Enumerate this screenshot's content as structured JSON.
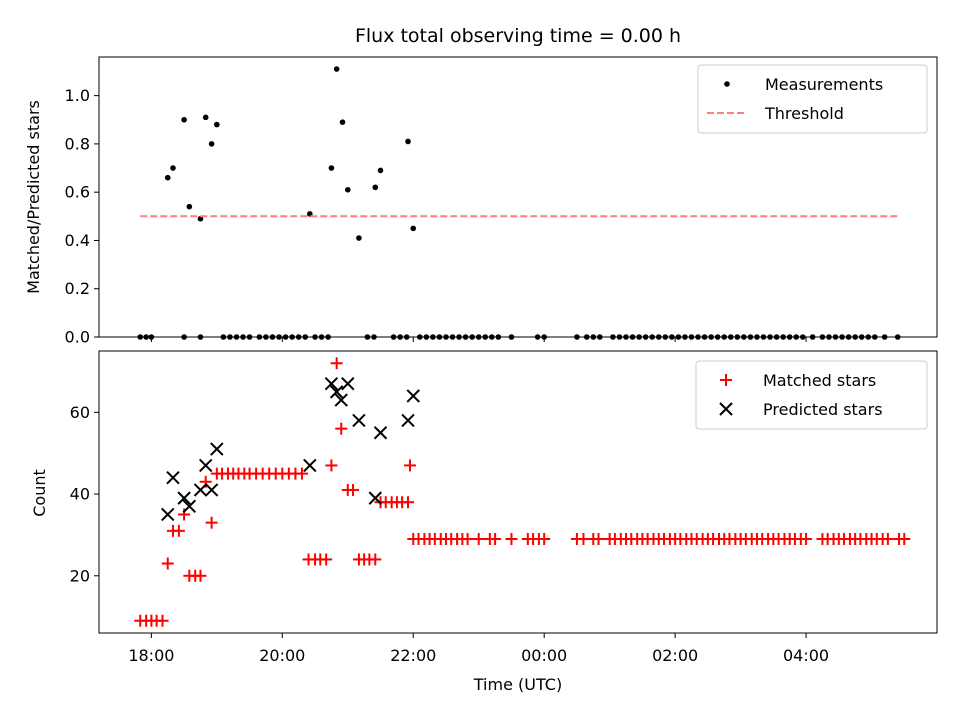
{
  "chart_data": [
    {
      "type": "scatter",
      "title": "Flux total observing time = 0.00 h",
      "xlabel": "",
      "ylabel": "Matched/Predicted stars",
      "xlim": [
        17.2,
        30.0
      ],
      "ylim": [
        0.0,
        1.16
      ],
      "yticks": [
        0.0,
        0.2,
        0.4,
        0.6,
        0.8,
        1.0
      ],
      "ytick_labels": [
        "0.0",
        "0.2",
        "0.4",
        "0.6",
        "0.8",
        "1.0"
      ],
      "legend_position": "top-right",
      "legend": [
        "Measurements",
        "Threshold"
      ],
      "series": [
        {
          "name": "Measurements",
          "color": "#000000",
          "marker": "dot",
          "points": [
            [
              18.25,
              0.66
            ],
            [
              18.33,
              0.7
            ],
            [
              18.5,
              0.9
            ],
            [
              18.58,
              0.54
            ],
            [
              18.75,
              0.49
            ],
            [
              18.83,
              0.91
            ],
            [
              18.92,
              0.8
            ],
            [
              19.0,
              0.88
            ],
            [
              20.42,
              0.51
            ],
            [
              20.75,
              0.7
            ],
            [
              20.83,
              1.11
            ],
            [
              20.92,
              0.89
            ],
            [
              21.0,
              0.61
            ],
            [
              21.17,
              0.41
            ],
            [
              21.42,
              0.62
            ],
            [
              21.5,
              0.69
            ],
            [
              21.92,
              0.81
            ],
            [
              22.0,
              0.45
            ],
            [
              17.83,
              0
            ],
            [
              17.92,
              0
            ],
            [
              18.0,
              0
            ],
            [
              18.5,
              0
            ],
            [
              18.75,
              0
            ],
            [
              19.1,
              0
            ],
            [
              19.2,
              0
            ],
            [
              19.3,
              0
            ],
            [
              19.4,
              0
            ],
            [
              19.5,
              0
            ],
            [
              19.65,
              0
            ],
            [
              19.75,
              0
            ],
            [
              19.85,
              0
            ],
            [
              19.95,
              0
            ],
            [
              20.05,
              0
            ],
            [
              20.15,
              0
            ],
            [
              20.25,
              0
            ],
            [
              20.35,
              0
            ],
            [
              20.5,
              0
            ],
            [
              20.6,
              0
            ],
            [
              20.7,
              0
            ],
            [
              21.3,
              0
            ],
            [
              21.4,
              0
            ],
            [
              21.7,
              0
            ],
            [
              21.8,
              0
            ],
            [
              21.9,
              0
            ],
            [
              22.1,
              0
            ],
            [
              22.2,
              0
            ],
            [
              22.3,
              0
            ],
            [
              22.4,
              0
            ],
            [
              22.5,
              0
            ],
            [
              22.6,
              0
            ],
            [
              22.7,
              0
            ],
            [
              22.8,
              0
            ],
            [
              22.9,
              0
            ],
            [
              23.0,
              0
            ],
            [
              23.1,
              0
            ],
            [
              23.2,
              0
            ],
            [
              23.3,
              0
            ],
            [
              23.5,
              0
            ],
            [
              23.9,
              0
            ],
            [
              24.0,
              0
            ],
            [
              24.5,
              0
            ],
            [
              24.65,
              0
            ],
            [
              24.75,
              0
            ],
            [
              24.85,
              0
            ],
            [
              25.05,
              0
            ],
            [
              25.15,
              0
            ],
            [
              25.25,
              0
            ],
            [
              25.35,
              0
            ],
            [
              25.45,
              0
            ],
            [
              25.55,
              0
            ],
            [
              25.65,
              0
            ],
            [
              25.75,
              0
            ],
            [
              25.85,
              0
            ],
            [
              25.95,
              0
            ],
            [
              26.05,
              0
            ],
            [
              26.15,
              0
            ],
            [
              26.25,
              0
            ],
            [
              26.35,
              0
            ],
            [
              26.45,
              0
            ],
            [
              26.55,
              0
            ],
            [
              26.65,
              0
            ],
            [
              26.75,
              0
            ],
            [
              26.85,
              0
            ],
            [
              26.95,
              0
            ],
            [
              27.05,
              0
            ],
            [
              27.15,
              0
            ],
            [
              27.25,
              0
            ],
            [
              27.35,
              0
            ],
            [
              27.45,
              0
            ],
            [
              27.55,
              0
            ],
            [
              27.65,
              0
            ],
            [
              27.75,
              0
            ],
            [
              27.85,
              0
            ],
            [
              27.95,
              0
            ],
            [
              28.1,
              0
            ],
            [
              28.25,
              0
            ],
            [
              28.35,
              0
            ],
            [
              28.45,
              0
            ],
            [
              28.55,
              0
            ],
            [
              28.65,
              0
            ],
            [
              28.75,
              0
            ],
            [
              28.85,
              0
            ],
            [
              28.95,
              0
            ],
            [
              29.05,
              0
            ],
            [
              29.2,
              0
            ],
            [
              29.4,
              0
            ]
          ]
        },
        {
          "name": "Threshold",
          "color": "#ff7f7f",
          "style": "dashed",
          "points": [
            [
              17.83,
              0.5
            ],
            [
              29.4,
              0.5
            ]
          ]
        }
      ]
    },
    {
      "type": "scatter",
      "title": "",
      "xlabel": "Time (UTC)",
      "ylabel": "Count",
      "xlim": [
        17.2,
        30.0
      ],
      "ylim": [
        6,
        75
      ],
      "yticks": [
        20,
        40,
        60
      ],
      "ytick_labels": [
        "20",
        "40",
        "60"
      ],
      "xticks": [
        18,
        20,
        22,
        24,
        26,
        28
      ],
      "xtick_labels": [
        "18:00",
        "20:00",
        "22:00",
        "00:00",
        "02:00",
        "04:00"
      ],
      "legend_position": "top-right",
      "legend": [
        "Matched stars",
        "Predicted stars"
      ],
      "series": [
        {
          "name": "Matched stars",
          "color": "#ff0000",
          "marker": "plus",
          "points": [
            [
              17.83,
              9
            ],
            [
              17.92,
              9
            ],
            [
              18.0,
              9
            ],
            [
              18.08,
              9
            ],
            [
              18.17,
              9
            ],
            [
              18.25,
              23
            ],
            [
              18.33,
              31
            ],
            [
              18.42,
              31
            ],
            [
              18.5,
              35
            ],
            [
              18.58,
              20
            ],
            [
              18.67,
              20
            ],
            [
              18.75,
              20
            ],
            [
              18.83,
              43
            ],
            [
              18.92,
              33
            ],
            [
              19.0,
              45
            ],
            [
              19.08,
              45
            ],
            [
              19.17,
              45
            ],
            [
              19.25,
              45
            ],
            [
              19.33,
              45
            ],
            [
              19.42,
              45
            ],
            [
              19.5,
              45
            ],
            [
              19.6,
              45
            ],
            [
              19.7,
              45
            ],
            [
              19.8,
              45
            ],
            [
              19.9,
              45
            ],
            [
              20.0,
              45
            ],
            [
              20.1,
              45
            ],
            [
              20.2,
              45
            ],
            [
              20.3,
              45
            ],
            [
              20.4,
              24
            ],
            [
              20.5,
              24
            ],
            [
              20.58,
              24
            ],
            [
              20.67,
              24
            ],
            [
              20.75,
              47
            ],
            [
              20.83,
              72
            ],
            [
              20.9,
              56
            ],
            [
              21.0,
              41
            ],
            [
              21.08,
              41
            ],
            [
              21.17,
              24
            ],
            [
              21.25,
              24
            ],
            [
              21.33,
              24
            ],
            [
              21.42,
              24
            ],
            [
              21.5,
              38
            ],
            [
              21.58,
              38
            ],
            [
              21.67,
              38
            ],
            [
              21.75,
              38
            ],
            [
              21.83,
              38
            ],
            [
              21.92,
              38
            ],
            [
              21.95,
              47
            ],
            [
              22.0,
              29
            ],
            [
              22.08,
              29
            ],
            [
              22.17,
              29
            ],
            [
              22.25,
              29
            ],
            [
              22.33,
              29
            ],
            [
              22.42,
              29
            ],
            [
              22.5,
              29
            ],
            [
              22.58,
              29
            ],
            [
              22.67,
              29
            ],
            [
              22.75,
              29
            ],
            [
              22.83,
              29
            ],
            [
              23.0,
              29
            ],
            [
              23.17,
              29
            ],
            [
              23.25,
              29
            ],
            [
              23.5,
              29
            ],
            [
              23.75,
              29
            ],
            [
              23.83,
              29
            ],
            [
              23.92,
              29
            ],
            [
              24.0,
              29
            ],
            [
              24.5,
              29
            ],
            [
              24.6,
              29
            ],
            [
              24.75,
              29
            ],
            [
              24.83,
              29
            ],
            [
              25.0,
              29
            ],
            [
              25.08,
              29
            ],
            [
              25.17,
              29
            ],
            [
              25.25,
              29
            ],
            [
              25.33,
              29
            ],
            [
              25.42,
              29
            ],
            [
              25.5,
              29
            ],
            [
              25.58,
              29
            ],
            [
              25.67,
              29
            ],
            [
              25.75,
              29
            ],
            [
              25.83,
              29
            ],
            [
              25.92,
              29
            ],
            [
              26.0,
              29
            ],
            [
              26.08,
              29
            ],
            [
              26.17,
              29
            ],
            [
              26.25,
              29
            ],
            [
              26.33,
              29
            ],
            [
              26.42,
              29
            ],
            [
              26.5,
              29
            ],
            [
              26.58,
              29
            ],
            [
              26.67,
              29
            ],
            [
              26.75,
              29
            ],
            [
              26.83,
              29
            ],
            [
              26.92,
              29
            ],
            [
              27.0,
              29
            ],
            [
              27.08,
              29
            ],
            [
              27.17,
              29
            ],
            [
              27.25,
              29
            ],
            [
              27.33,
              29
            ],
            [
              27.42,
              29
            ],
            [
              27.5,
              29
            ],
            [
              27.58,
              29
            ],
            [
              27.67,
              29
            ],
            [
              27.75,
              29
            ],
            [
              27.83,
              29
            ],
            [
              27.92,
              29
            ],
            [
              28.0,
              29
            ],
            [
              28.25,
              29
            ],
            [
              28.33,
              29
            ],
            [
              28.42,
              29
            ],
            [
              28.5,
              29
            ],
            [
              28.58,
              29
            ],
            [
              28.67,
              29
            ],
            [
              28.75,
              29
            ],
            [
              28.83,
              29
            ],
            [
              28.92,
              29
            ],
            [
              29.0,
              29
            ],
            [
              29.08,
              29
            ],
            [
              29.17,
              29
            ],
            [
              29.25,
              29
            ],
            [
              29.42,
              29
            ],
            [
              29.5,
              29
            ]
          ]
        },
        {
          "name": "Predicted stars",
          "color": "#000000",
          "marker": "x",
          "points": [
            [
              18.25,
              35
            ],
            [
              18.33,
              44
            ],
            [
              18.5,
              39
            ],
            [
              18.58,
              37
            ],
            [
              18.75,
              41
            ],
            [
              18.83,
              47
            ],
            [
              18.92,
              41
            ],
            [
              19.0,
              51
            ],
            [
              20.42,
              47
            ],
            [
              20.75,
              67
            ],
            [
              20.83,
              65
            ],
            [
              20.9,
              63
            ],
            [
              21.0,
              67
            ],
            [
              21.17,
              58
            ],
            [
              21.42,
              39
            ],
            [
              21.5,
              55
            ],
            [
              21.92,
              58
            ],
            [
              22.0,
              64
            ]
          ]
        }
      ]
    }
  ]
}
